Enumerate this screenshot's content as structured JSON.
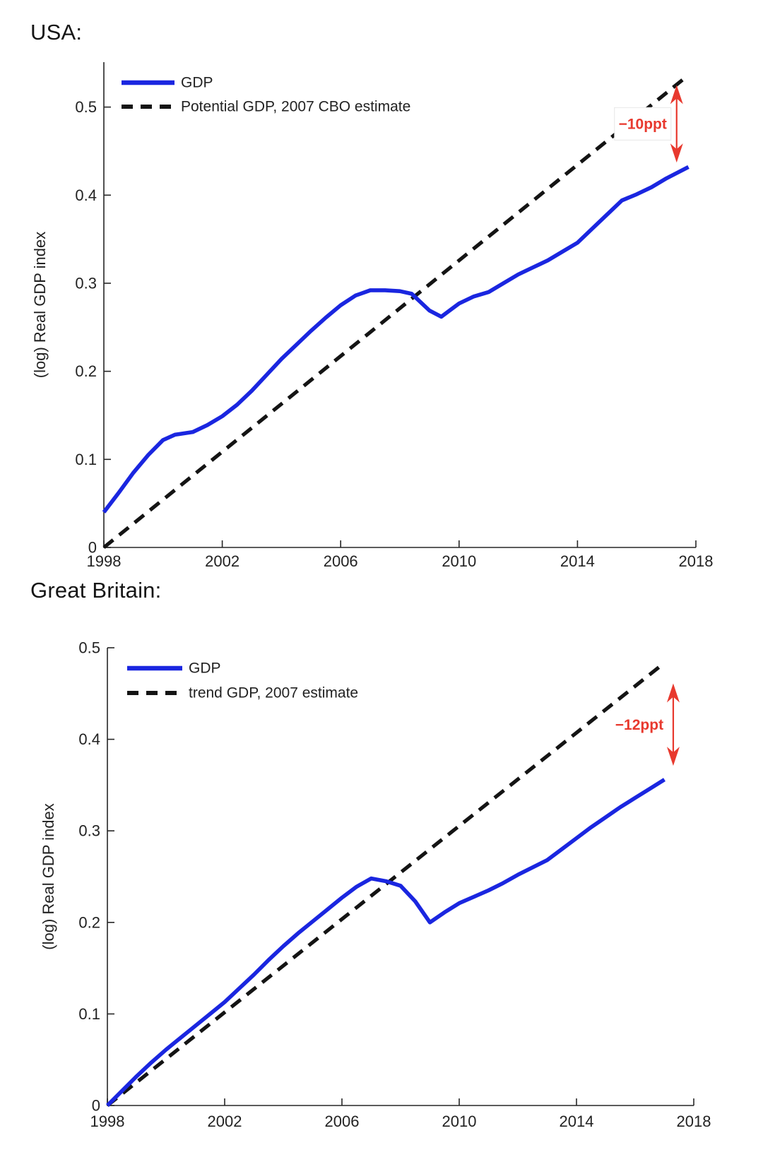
{
  "colors": {
    "gdp_line": "#1a26e0",
    "trend_line": "#141414",
    "annotation_red": "#e8392e",
    "axis": "#262626",
    "tick_text": "#222222",
    "title_text": "#151515"
  },
  "chart_data": [
    {
      "id": "usa",
      "type": "line",
      "title": "USA:",
      "ylabel": "(log) Real GDP index",
      "xlim": [
        1998,
        2018
      ],
      "ylim": [
        0,
        0.551
      ],
      "x_ticks": [
        1998,
        2002,
        2006,
        2010,
        2014,
        2018
      ],
      "y_ticks": [
        0,
        0.1,
        0.2,
        0.3,
        0.4,
        0.5
      ],
      "y_tick_labels": [
        "0",
        "0.1",
        "0.2",
        "0.3",
        "0.4",
        "0.5"
      ],
      "grid": false,
      "legend_position": "top-left-inside",
      "series": [
        {
          "name": "GDP",
          "style": "solid",
          "color": "#1a26e0",
          "points": [
            [
              1998,
              0.04
            ],
            [
              1998.5,
              0.062
            ],
            [
              1999,
              0.085
            ],
            [
              1999.5,
              0.105
            ],
            [
              2000,
              0.122
            ],
            [
              2000.4,
              0.128
            ],
            [
              2001,
              0.131
            ],
            [
              2001.5,
              0.139
            ],
            [
              2002,
              0.149
            ],
            [
              2002.5,
              0.162
            ],
            [
              2003,
              0.178
            ],
            [
              2003.5,
              0.196
            ],
            [
              2004,
              0.214
            ],
            [
              2004.5,
              0.23
            ],
            [
              2005,
              0.246
            ],
            [
              2005.5,
              0.261
            ],
            [
              2006,
              0.275
            ],
            [
              2006.5,
              0.286
            ],
            [
              2007,
              0.292
            ],
            [
              2007.5,
              0.292
            ],
            [
              2008,
              0.291
            ],
            [
              2008.4,
              0.288
            ],
            [
              2009,
              0.269
            ],
            [
              2009.4,
              0.262
            ],
            [
              2010,
              0.277
            ],
            [
              2010.5,
              0.285
            ],
            [
              2011,
              0.29
            ],
            [
              2011.5,
              0.3
            ],
            [
              2012,
              0.31
            ],
            [
              2012.5,
              0.318
            ],
            [
              2013,
              0.326
            ],
            [
              2013.5,
              0.336
            ],
            [
              2014,
              0.346
            ],
            [
              2014.5,
              0.362
            ],
            [
              2015,
              0.378
            ],
            [
              2015.5,
              0.394
            ],
            [
              2016,
              0.401
            ],
            [
              2016.5,
              0.409
            ],
            [
              2017,
              0.419
            ],
            [
              2017.75,
              0.432
            ]
          ]
        },
        {
          "name": "Potential GDP, 2007 CBO estimate",
          "style": "dashed",
          "color": "#141414",
          "points": [
            [
              1998,
              0
            ],
            [
              2017.7,
              0.535
            ]
          ]
        }
      ],
      "annotation": {
        "label": "−10ppt",
        "x": 2017.35,
        "y_top": 0.525,
        "y_bottom": 0.437,
        "boxed": true,
        "color": "#e8392e"
      }
    },
    {
      "id": "great-britain",
      "type": "line",
      "title": "Great Britain:",
      "ylabel": "(log) Real GDP index",
      "xlim": [
        1998,
        2018
      ],
      "ylim": [
        0,
        0.5
      ],
      "x_ticks": [
        1998,
        2002,
        2006,
        2010,
        2014,
        2018
      ],
      "y_ticks": [
        0,
        0.1,
        0.2,
        0.3,
        0.4,
        0.5
      ],
      "y_tick_labels": [
        "0",
        "0.1",
        "0.2",
        "0.3",
        "0.4",
        "0.5"
      ],
      "grid": false,
      "legend_position": "top-left-inside",
      "series": [
        {
          "name": "GDP",
          "style": "solid",
          "color": "#1a26e0",
          "points": [
            [
              1998,
              0.0
            ],
            [
              1998.5,
              0.016
            ],
            [
              1999,
              0.032
            ],
            [
              1999.5,
              0.047
            ],
            [
              2000,
              0.061
            ],
            [
              2000.5,
              0.074
            ],
            [
              2001,
              0.087
            ],
            [
              2001.5,
              0.1
            ],
            [
              2002,
              0.113
            ],
            [
              2002.5,
              0.128
            ],
            [
              2003,
              0.143
            ],
            [
              2003.5,
              0.159
            ],
            [
              2004,
              0.174
            ],
            [
              2004.5,
              0.188
            ],
            [
              2005,
              0.201
            ],
            [
              2005.5,
              0.214
            ],
            [
              2006,
              0.227
            ],
            [
              2006.5,
              0.239
            ],
            [
              2007,
              0.248
            ],
            [
              2007.5,
              0.245
            ],
            [
              2008,
              0.24
            ],
            [
              2008.5,
              0.223
            ],
            [
              2009,
              0.2
            ],
            [
              2009.5,
              0.211
            ],
            [
              2010,
              0.221
            ],
            [
              2010.5,
              0.228
            ],
            [
              2011,
              0.235
            ],
            [
              2011.5,
              0.243
            ],
            [
              2012,
              0.252
            ],
            [
              2012.5,
              0.26
            ],
            [
              2013,
              0.268
            ],
            [
              2013.5,
              0.28
            ],
            [
              2014,
              0.292
            ],
            [
              2014.5,
              0.304
            ],
            [
              2015,
              0.315
            ],
            [
              2015.5,
              0.326
            ],
            [
              2016,
              0.336
            ],
            [
              2016.5,
              0.346
            ],
            [
              2017,
              0.356
            ]
          ]
        },
        {
          "name": "trend GDP, 2007 estimate",
          "style": "dashed",
          "color": "#141414",
          "points": [
            [
              1998,
              0
            ],
            [
              2016.9,
              0.481
            ]
          ]
        }
      ],
      "annotation": {
        "label": "−12ppt",
        "x": 2017.3,
        "y_top": 0.461,
        "y_bottom": 0.371,
        "boxed": false,
        "color": "#e8392e"
      }
    }
  ]
}
